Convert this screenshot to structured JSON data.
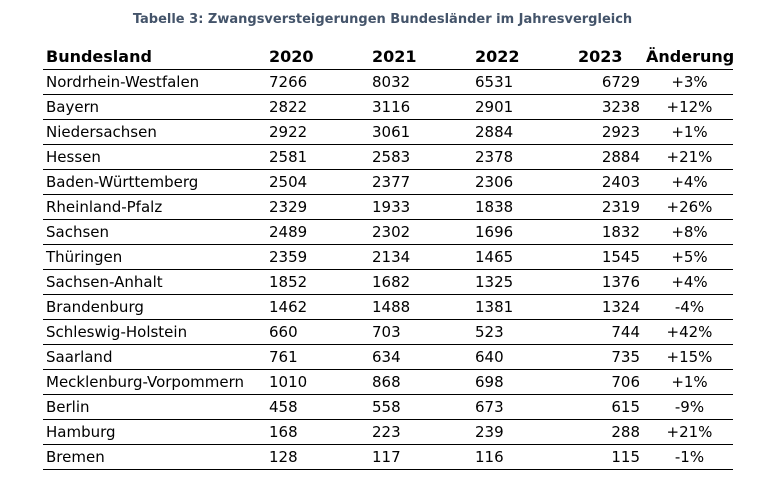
{
  "caption": "Tabelle 3: Zwangsversteigerungen Bundesländer im Jahresvergleich",
  "table": {
    "headers": [
      "Bundesland",
      "2020",
      "2021",
      "2022",
      "2023",
      "Änderung"
    ],
    "rows": [
      [
        "Nordrhein-Westfalen",
        "7266",
        "8032",
        "6531",
        "6729",
        "+3%"
      ],
      [
        "Bayern",
        "2822",
        "3116",
        "2901",
        "3238",
        "+12%"
      ],
      [
        "Niedersachsen",
        "2922",
        "3061",
        "2884",
        "2923",
        "+1%"
      ],
      [
        "Hessen",
        "2581",
        "2583",
        "2378",
        "2884",
        "+21%"
      ],
      [
        "Baden-Württemberg",
        "2504",
        "2377",
        "2306",
        "2403",
        "+4%"
      ],
      [
        "Rheinland-Pfalz",
        "2329",
        "1933",
        "1838",
        "2319",
        "+26%"
      ],
      [
        "Sachsen",
        "2489",
        "2302",
        "1696",
        "1832",
        "+8%"
      ],
      [
        "Thüringen",
        "2359",
        "2134",
        "1465",
        "1545",
        "+5%"
      ],
      [
        "Sachsen-Anhalt",
        "1852",
        "1682",
        "1325",
        "1376",
        "+4%"
      ],
      [
        "Brandenburg",
        "1462",
        "1488",
        "1381",
        "1324",
        "-4%"
      ],
      [
        "Schleswig-Holstein",
        "660",
        "703",
        "523",
        "744",
        "+42%"
      ],
      [
        "Saarland",
        "761",
        "634",
        "640",
        "735",
        "+15%"
      ],
      [
        "Mecklenburg-Vorpommern",
        "1010",
        "868",
        "698",
        "706",
        "+1%"
      ],
      [
        "Berlin",
        "458",
        "558",
        "673",
        "615",
        "-9%"
      ],
      [
        "Hamburg",
        "168",
        "223",
        "239",
        "288",
        "+21%"
      ],
      [
        "Bremen",
        "128",
        "117",
        "116",
        "115",
        "-1%"
      ]
    ]
  },
  "colors": {
    "caption": "#44546a",
    "text": "#000000",
    "rule": "#000000"
  }
}
